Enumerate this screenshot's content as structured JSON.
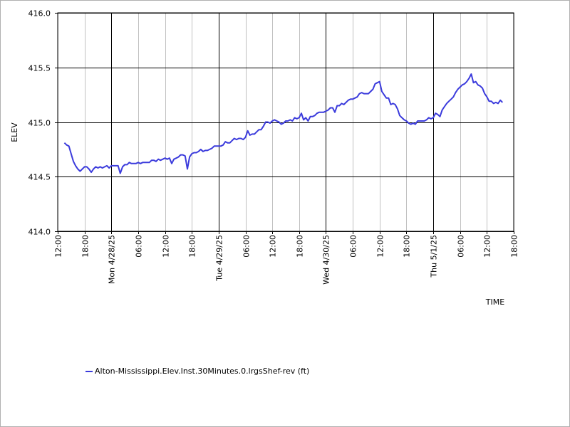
{
  "chart_data": {
    "type": "line",
    "title": "",
    "xlabel": "TIME",
    "ylabel": "ELEV",
    "ylim": [
      414.0,
      416.0
    ],
    "y_ticks": [
      "414.0",
      "414.5",
      "415.0",
      "415.5",
      "416.0"
    ],
    "xlim_hours": [
      0,
      102
    ],
    "x_ticks": [
      {
        "h": 0,
        "label": "12:00",
        "major": false
      },
      {
        "h": 6,
        "label": "18:00",
        "major": false
      },
      {
        "h": 12,
        "label": "Mon 4/28/25",
        "major": true
      },
      {
        "h": 18,
        "label": "06:00",
        "major": false
      },
      {
        "h": 24,
        "label": "12:00",
        "major": false
      },
      {
        "h": 30,
        "label": "18:00",
        "major": false
      },
      {
        "h": 36,
        "label": "Tue 4/29/25",
        "major": true
      },
      {
        "h": 42,
        "label": "06:00",
        "major": false
      },
      {
        "h": 48,
        "label": "12:00",
        "major": false
      },
      {
        "h": 54,
        "label": "18:00",
        "major": false
      },
      {
        "h": 60,
        "label": "Wed 4/30/25",
        "major": true
      },
      {
        "h": 66,
        "label": "06:00",
        "major": false
      },
      {
        "h": 72,
        "label": "12:00",
        "major": false
      },
      {
        "h": 78,
        "label": "18:00",
        "major": false
      },
      {
        "h": 84,
        "label": "Thu 5/1/25",
        "major": true
      },
      {
        "h": 90,
        "label": "06:00",
        "major": false
      },
      {
        "h": 96,
        "label": "12:00",
        "major": false
      },
      {
        "h": 102,
        "label": "18:00",
        "major": false
      }
    ],
    "grid": true,
    "legend_position": "bottom-left",
    "series": [
      {
        "name": "Alton-Mississippi.Elev.Inst.30Minutes.0.lrgsShef-rev (ft)",
        "color": "#3b3bdc",
        "points": [
          [
            1.5,
            414.81
          ],
          [
            2.0,
            414.79
          ],
          [
            2.5,
            414.78
          ],
          [
            3.0,
            414.71
          ],
          [
            3.5,
            414.64
          ],
          [
            4.0,
            414.6
          ],
          [
            4.5,
            414.57
          ],
          [
            5.0,
            414.55
          ],
          [
            5.5,
            414.57
          ],
          [
            6.0,
            414.59
          ],
          [
            6.5,
            414.59
          ],
          [
            7.0,
            414.57
          ],
          [
            7.5,
            414.54
          ],
          [
            8.0,
            414.57
          ],
          [
            8.5,
            414.59
          ],
          [
            9.0,
            414.58
          ],
          [
            9.5,
            414.59
          ],
          [
            10.0,
            414.58
          ],
          [
            10.5,
            414.59
          ],
          [
            11.0,
            414.6
          ],
          [
            11.5,
            414.58
          ],
          [
            12.0,
            414.6
          ],
          [
            12.5,
            414.6
          ],
          [
            13.0,
            414.6
          ],
          [
            13.5,
            414.6
          ],
          [
            14.0,
            414.53
          ],
          [
            14.5,
            414.59
          ],
          [
            15.0,
            414.61
          ],
          [
            15.5,
            414.61
          ],
          [
            16.0,
            414.63
          ],
          [
            16.5,
            414.62
          ],
          [
            17.0,
            414.62
          ],
          [
            17.5,
            414.62
          ],
          [
            18.0,
            414.63
          ],
          [
            18.5,
            414.62
          ],
          [
            19.0,
            414.63
          ],
          [
            19.5,
            414.63
          ],
          [
            20.0,
            414.63
          ],
          [
            20.5,
            414.63
          ],
          [
            21.0,
            414.65
          ],
          [
            21.5,
            414.65
          ],
          [
            22.0,
            414.64
          ],
          [
            22.5,
            414.66
          ],
          [
            23.0,
            414.65
          ],
          [
            23.5,
            414.66
          ],
          [
            24.0,
            414.67
          ],
          [
            24.5,
            414.66
          ],
          [
            25.0,
            414.67
          ],
          [
            25.5,
            414.62
          ],
          [
            26.0,
            414.66
          ],
          [
            26.5,
            414.67
          ],
          [
            27.0,
            414.68
          ],
          [
            27.5,
            414.7
          ],
          [
            28.0,
            414.7
          ],
          [
            28.5,
            414.69
          ],
          [
            29.0,
            414.57
          ],
          [
            29.5,
            414.68
          ],
          [
            30.0,
            414.71
          ],
          [
            30.5,
            414.72
          ],
          [
            31.0,
            414.72
          ],
          [
            31.5,
            414.73
          ],
          [
            32.0,
            414.75
          ],
          [
            32.5,
            414.73
          ],
          [
            33.0,
            414.74
          ],
          [
            33.5,
            414.74
          ],
          [
            34.0,
            414.75
          ],
          [
            34.5,
            414.76
          ],
          [
            35.0,
            414.78
          ],
          [
            35.5,
            414.78
          ],
          [
            36.0,
            414.78
          ],
          [
            36.5,
            414.78
          ],
          [
            37.0,
            414.79
          ],
          [
            37.5,
            414.82
          ],
          [
            38.0,
            414.81
          ],
          [
            38.5,
            414.81
          ],
          [
            39.0,
            414.83
          ],
          [
            39.5,
            414.85
          ],
          [
            40.0,
            414.84
          ],
          [
            40.5,
            414.85
          ],
          [
            41.0,
            414.85
          ],
          [
            41.5,
            414.84
          ],
          [
            42.0,
            414.86
          ],
          [
            42.5,
            414.92
          ],
          [
            43.0,
            414.88
          ],
          [
            43.5,
            414.89
          ],
          [
            44.0,
            414.89
          ],
          [
            44.5,
            414.91
          ],
          [
            45.0,
            414.93
          ],
          [
            45.5,
            414.93
          ],
          [
            46.0,
            414.96
          ],
          [
            46.5,
            415.0
          ],
          [
            47.0,
            415.0
          ],
          [
            47.5,
            414.99
          ],
          [
            48.0,
            415.01
          ],
          [
            48.5,
            415.02
          ],
          [
            49.0,
            415.01
          ],
          [
            49.5,
            415.0
          ],
          [
            50.0,
            414.98
          ],
          [
            50.5,
            414.99
          ],
          [
            51.0,
            415.01
          ],
          [
            51.5,
            415.01
          ],
          [
            52.0,
            415.02
          ],
          [
            52.5,
            415.01
          ],
          [
            53.0,
            415.04
          ],
          [
            53.5,
            415.03
          ],
          [
            54.0,
            415.04
          ],
          [
            54.5,
            415.08
          ],
          [
            55.0,
            415.02
          ],
          [
            55.5,
            415.04
          ],
          [
            56.0,
            415.01
          ],
          [
            56.5,
            415.05
          ],
          [
            57.0,
            415.05
          ],
          [
            57.5,
            415.06
          ],
          [
            58.0,
            415.08
          ],
          [
            58.5,
            415.09
          ],
          [
            59.0,
            415.09
          ],
          [
            59.5,
            415.09
          ],
          [
            60.0,
            415.1
          ],
          [
            60.5,
            415.11
          ],
          [
            61.0,
            415.13
          ],
          [
            61.5,
            415.13
          ],
          [
            62.0,
            415.09
          ],
          [
            62.5,
            415.15
          ],
          [
            63.0,
            415.15
          ],
          [
            63.5,
            415.17
          ],
          [
            64.0,
            415.16
          ],
          [
            64.5,
            415.18
          ],
          [
            65.0,
            415.2
          ],
          [
            65.5,
            415.21
          ],
          [
            66.0,
            415.21
          ],
          [
            66.5,
            415.22
          ],
          [
            67.0,
            415.23
          ],
          [
            67.5,
            415.26
          ],
          [
            68.0,
            415.27
          ],
          [
            68.5,
            415.26
          ],
          [
            69.0,
            415.26
          ],
          [
            69.5,
            415.26
          ],
          [
            70.0,
            415.28
          ],
          [
            70.5,
            415.3
          ],
          [
            71.0,
            415.35
          ],
          [
            71.5,
            415.36
          ],
          [
            72.0,
            415.37
          ],
          [
            72.5,
            415.28
          ],
          [
            73.0,
            415.25
          ],
          [
            73.5,
            415.22
          ],
          [
            74.0,
            415.22
          ],
          [
            74.5,
            415.16
          ],
          [
            75.0,
            415.17
          ],
          [
            75.5,
            415.16
          ],
          [
            76.0,
            415.12
          ],
          [
            76.5,
            415.06
          ],
          [
            77.0,
            415.04
          ],
          [
            77.5,
            415.02
          ],
          [
            78.0,
            415.01
          ],
          [
            78.5,
            414.99
          ],
          [
            79.0,
            414.98
          ],
          [
            79.5,
            414.99
          ],
          [
            80.0,
            414.98
          ],
          [
            80.5,
            415.01
          ],
          [
            81.0,
            415.01
          ],
          [
            81.5,
            415.01
          ],
          [
            82.0,
            415.01
          ],
          [
            82.5,
            415.02
          ],
          [
            83.0,
            415.04
          ],
          [
            83.5,
            415.03
          ],
          [
            84.0,
            415.04
          ],
          [
            84.5,
            415.08
          ],
          [
            85.0,
            415.07
          ],
          [
            85.5,
            415.05
          ],
          [
            86.0,
            415.11
          ],
          [
            86.5,
            415.14
          ],
          [
            87.0,
            415.17
          ],
          [
            87.5,
            415.19
          ],
          [
            88.0,
            415.21
          ],
          [
            88.5,
            415.23
          ],
          [
            89.0,
            415.27
          ],
          [
            89.5,
            415.3
          ],
          [
            90.0,
            415.32
          ],
          [
            90.5,
            415.34
          ],
          [
            91.0,
            415.35
          ],
          [
            91.5,
            415.37
          ],
          [
            92.0,
            415.4
          ],
          [
            92.5,
            415.44
          ],
          [
            93.0,
            415.36
          ],
          [
            93.5,
            415.37
          ],
          [
            94.0,
            415.34
          ],
          [
            94.5,
            415.33
          ],
          [
            95.0,
            415.31
          ],
          [
            95.5,
            415.26
          ],
          [
            96.0,
            415.23
          ],
          [
            96.5,
            415.19
          ],
          [
            97.0,
            415.19
          ],
          [
            97.5,
            415.17
          ],
          [
            98.0,
            415.18
          ],
          [
            98.5,
            415.17
          ],
          [
            99.0,
            415.2
          ],
          [
            99.5,
            415.18
          ]
        ]
      }
    ]
  }
}
